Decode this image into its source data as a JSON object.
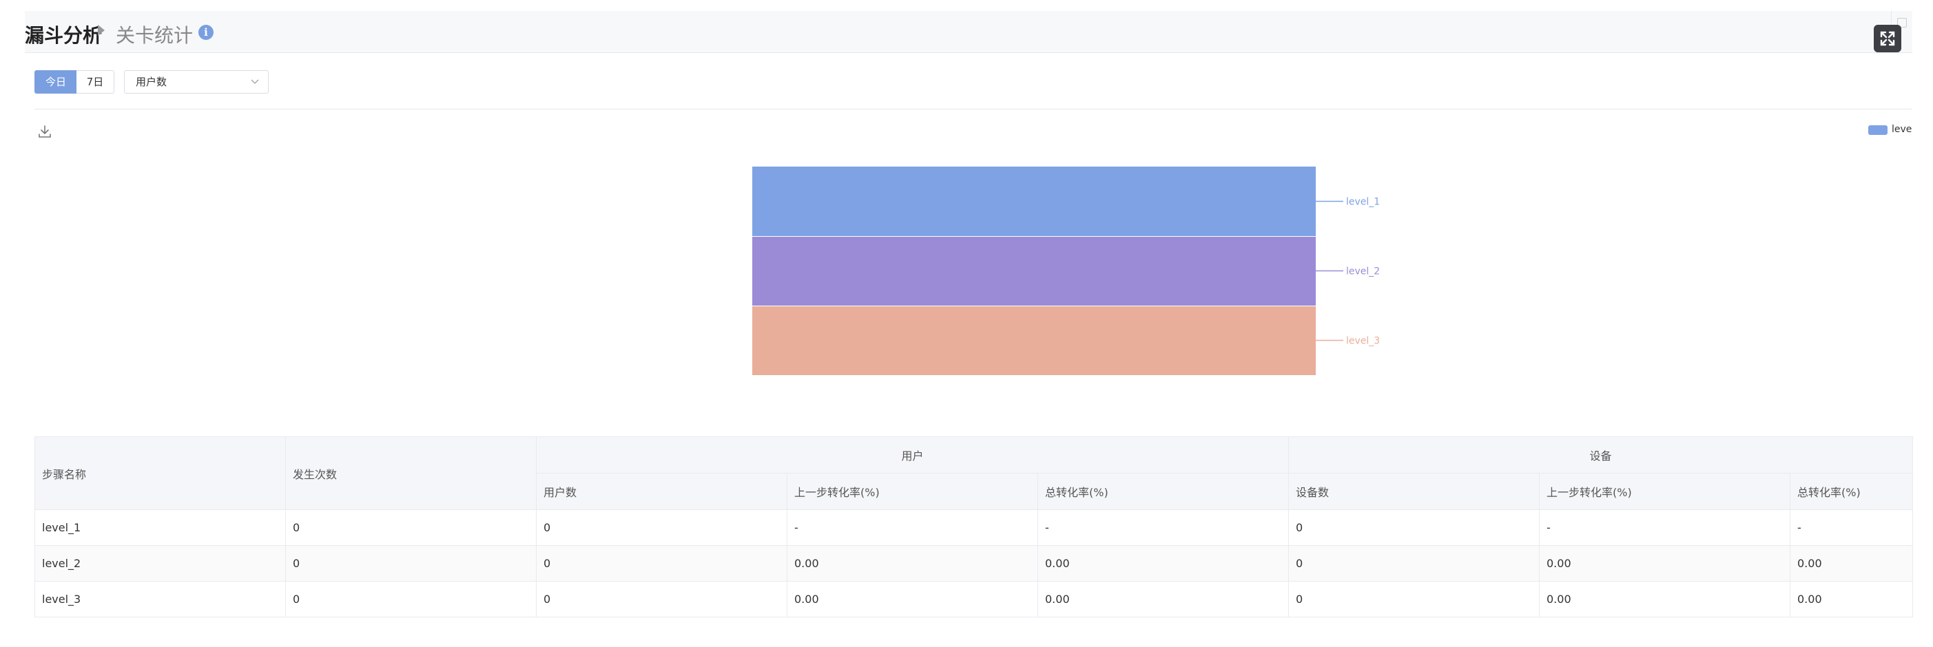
{
  "header": {
    "breadcrumb_root": "漏斗分析",
    "breadcrumb_current": "关卡统计",
    "info_icon": "info-icon",
    "fullscreen_icon": "expand-icon"
  },
  "controls": {
    "range_buttons": [
      "今日",
      "7日"
    ],
    "active_range": "今日",
    "metric_select": "用户数"
  },
  "chart": {
    "download_icon": "download-icon"
  },
  "chart_data": {
    "type": "funnel",
    "categories": [
      "level_1",
      "level_2",
      "level_3"
    ],
    "values": [
      0,
      0,
      0
    ],
    "colors": [
      "#7fa2e4",
      "#9b8bd6",
      "#e8ae9a"
    ],
    "legend": [
      "level_"
    ],
    "legend_position": "top-right"
  },
  "table": {
    "headers": {
      "step_name": "步骤名称",
      "occurrences": "发生次数",
      "user_group": "用户",
      "device_group": "设备",
      "user_count": "用户数",
      "user_prev_rate": "上一步转化率(%)",
      "user_total_rate": "总转化率(%)",
      "device_count": "设备数",
      "device_prev_rate": "上一步转化率(%)",
      "device_total_rate": "总转化率(%)"
    },
    "rows": [
      [
        "level_1",
        "0",
        "0",
        "-",
        "-",
        "0",
        "-",
        "-"
      ],
      [
        "level_2",
        "0",
        "0",
        "0.00",
        "0.00",
        "0",
        "0.00",
        "0.00"
      ],
      [
        "level_3",
        "0",
        "0",
        "0.00",
        "0.00",
        "0",
        "0.00",
        "0.00"
      ]
    ]
  }
}
